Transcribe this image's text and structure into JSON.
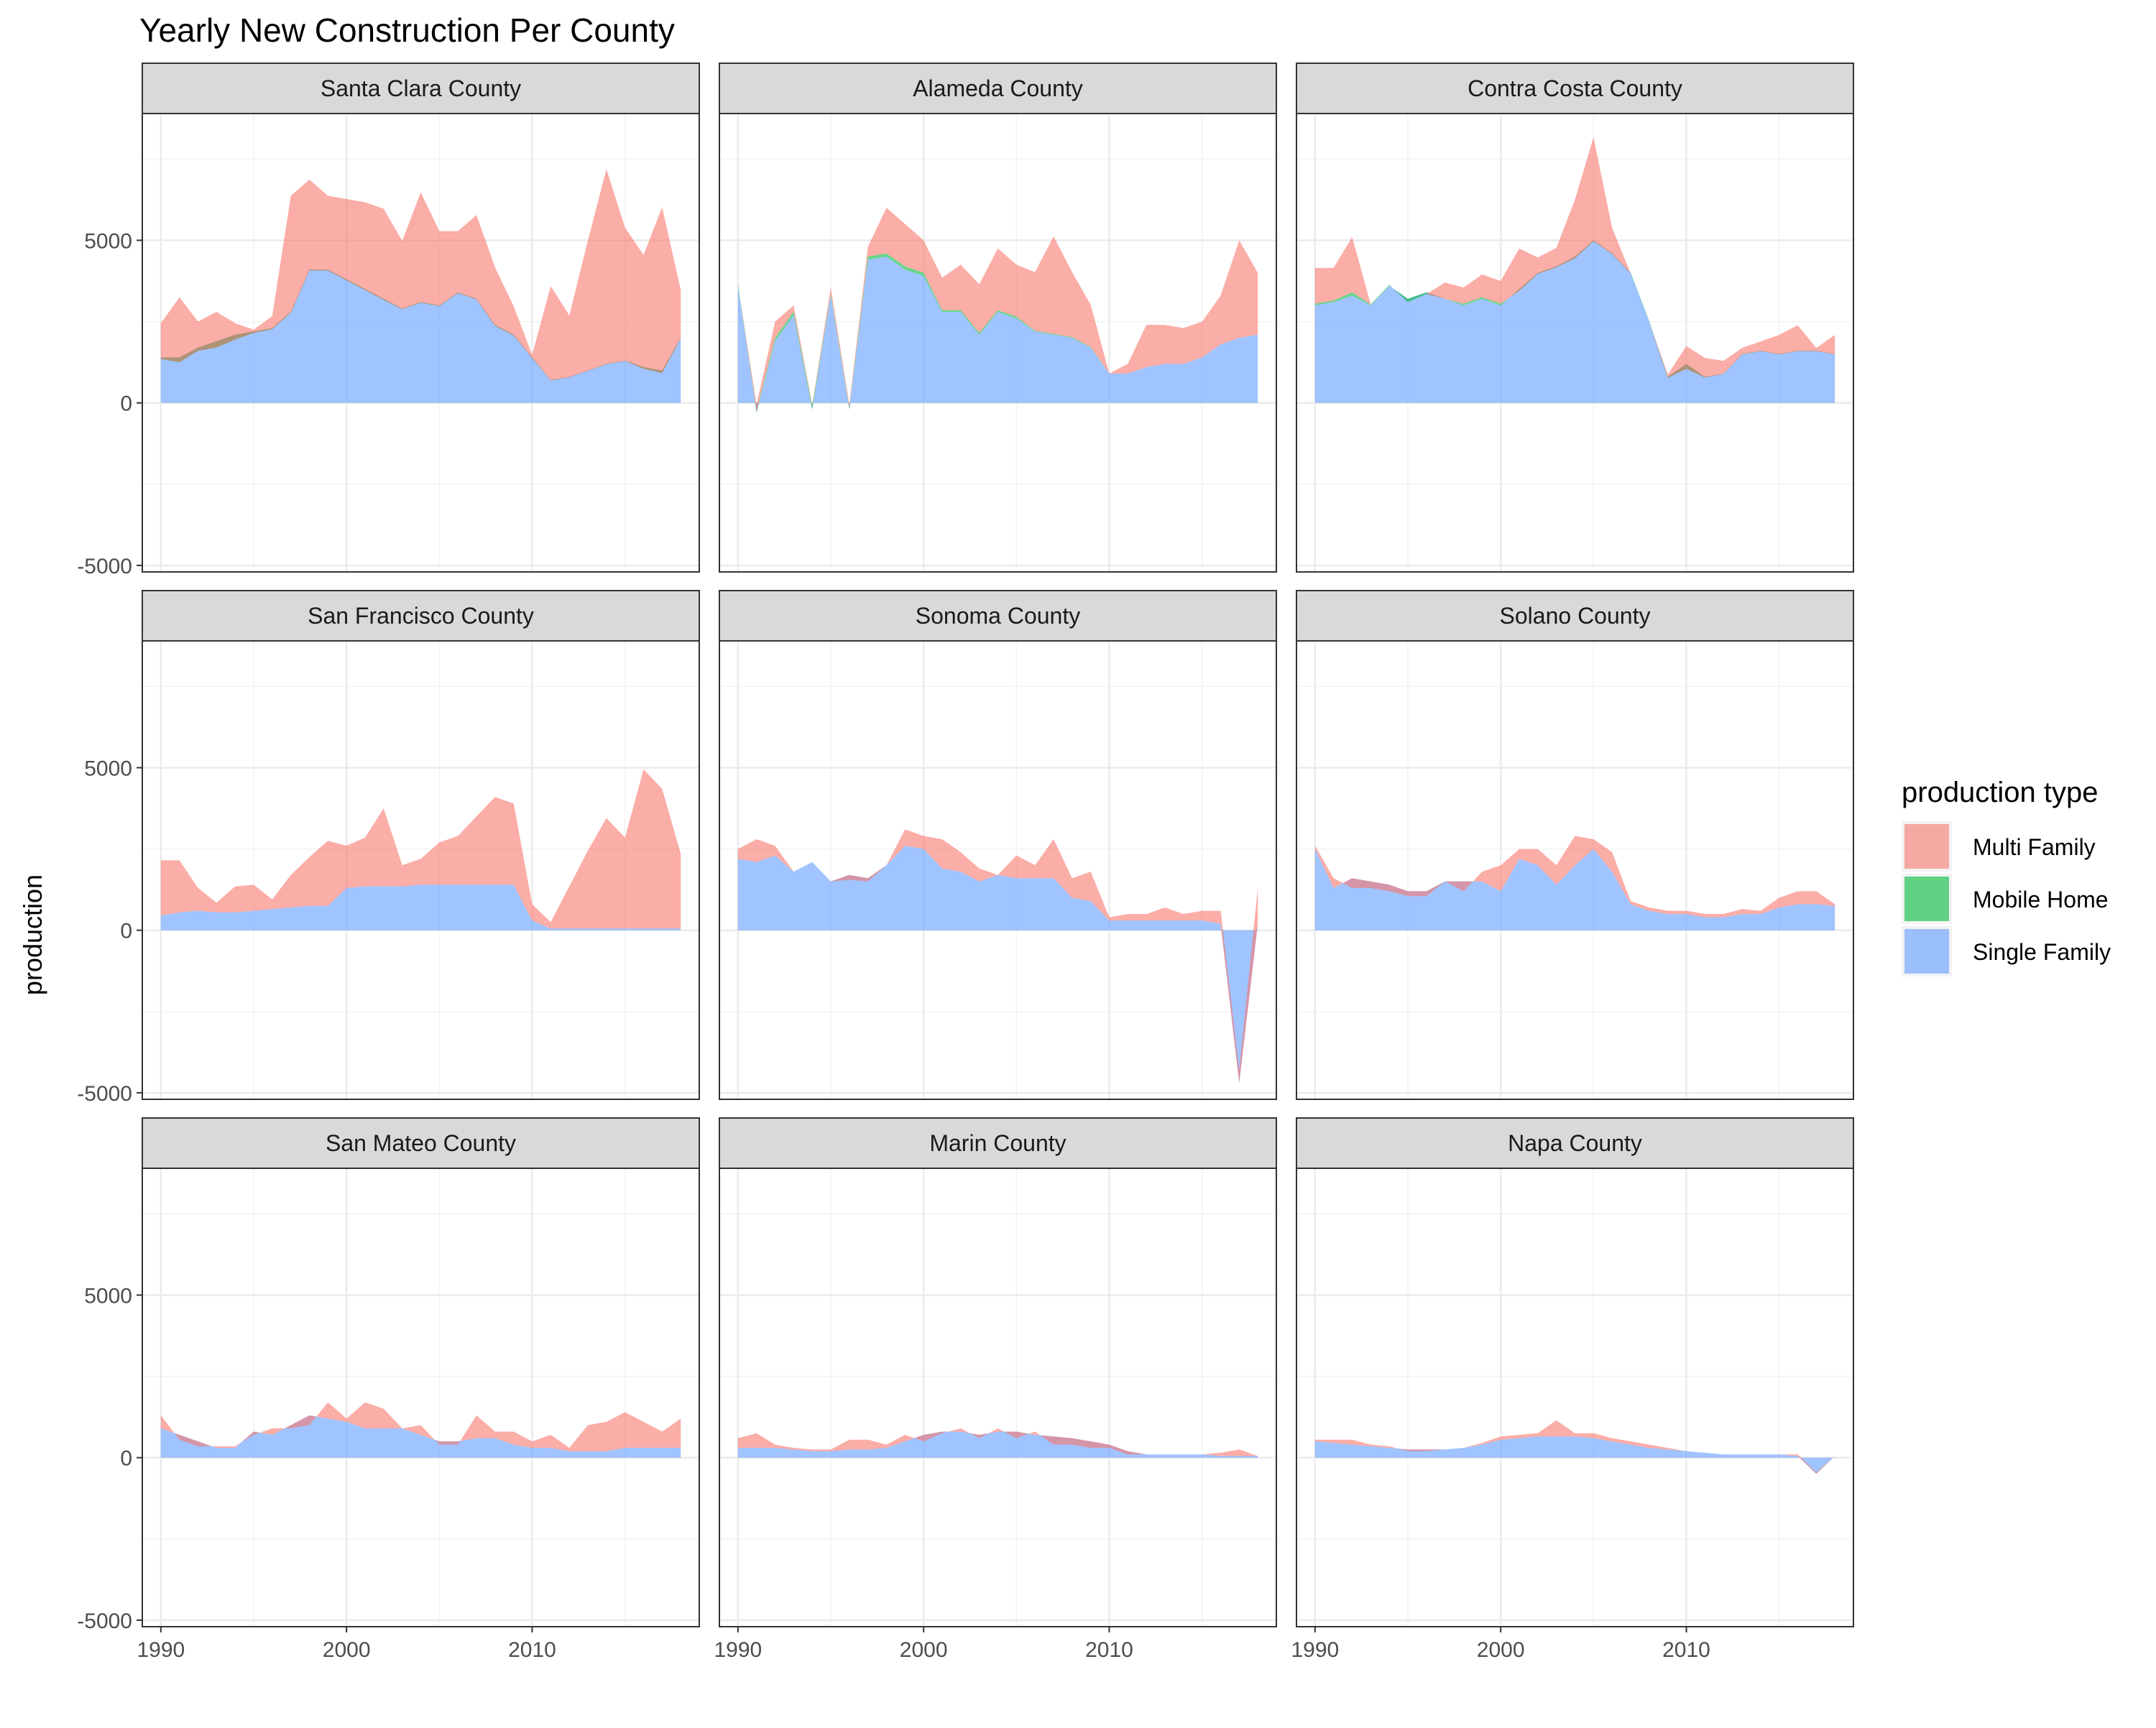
{
  "chart_data": {
    "type": "area",
    "title": "Yearly New Construction Per County",
    "xlabel": "",
    "ylabel": "production",
    "xlim": [
      1989,
      2019
    ],
    "ylim": [
      -5200,
      8900
    ],
    "x_ticks": [
      1990,
      2000,
      2010
    ],
    "y_ticks": [
      5000,
      0,
      -5000
    ],
    "grid": true,
    "stacked": true,
    "legend": {
      "title": "production type",
      "position": "right",
      "entries": [
        {
          "name": "Multi Family",
          "color": "#F8766D"
        },
        {
          "name": "Mobile Home",
          "color": "#00BA38"
        },
        {
          "name": "Single Family",
          "color": "#619CFF"
        }
      ]
    },
    "x": [
      1990,
      1991,
      1992,
      1993,
      1994,
      1995,
      1996,
      1997,
      1998,
      1999,
      2000,
      2001,
      2002,
      2003,
      2004,
      2005,
      2006,
      2007,
      2008,
      2009,
      2010,
      2011,
      2012,
      2013,
      2014,
      2015,
      2016,
      2017,
      2018
    ],
    "panels": [
      {
        "name": "Santa Clara County",
        "series": [
          {
            "name": "Single Family",
            "values": [
              1400,
              1400,
              1700,
              1900,
              2100,
              2200,
              2300,
              2800,
              4100,
              4100,
              3800,
              3500,
              3200,
              2900,
              3100,
              3000,
              3400,
              3200,
              2400,
              2100,
              1400,
              700,
              800,
              1000,
              1200,
              1300,
              1100,
              1000,
              2000
            ]
          },
          {
            "name": "Mobile Home",
            "values": [
              -50,
              -150,
              -100,
              -200,
              -150,
              -50,
              -30,
              -30,
              -30,
              -30,
              -30,
              -30,
              -30,
              -20,
              -20,
              -20,
              -20,
              -20,
              -30,
              -30,
              -20,
              -10,
              -10,
              -10,
              -10,
              -10,
              -50,
              -80,
              -20
            ]
          },
          {
            "name": "Multi Family",
            "values": [
              1100,
              2000,
              900,
              1100,
              500,
              100,
              400,
              3600,
              2800,
              2300,
              2500,
              2700,
              2800,
              2100,
              3400,
              2300,
              1900,
              2600,
              1800,
              900,
              100,
              2900,
              1900,
              4000,
              6000,
              4100,
              3500,
              5100,
              1500
            ]
          }
        ]
      },
      {
        "name": "Alameda County",
        "series": [
          {
            "name": "Single Family",
            "values": [
              3600,
              -300,
              1900,
              2700,
              -200,
              3300,
              -200,
              4400,
              4500,
              4100,
              3900,
              2800,
              2800,
              2100,
              2800,
              2600,
              2200,
              2100,
              2000,
              1700,
              900,
              900,
              1100,
              1200,
              1200,
              1400,
              1800,
              2000,
              2100
            ]
          },
          {
            "name": "Mobile Home",
            "values": [
              50,
              50,
              100,
              100,
              100,
              50,
              50,
              100,
              100,
              100,
              100,
              50,
              50,
              50,
              50,
              50,
              20,
              20,
              20,
              20,
              0,
              0,
              0,
              0,
              0,
              0,
              0,
              0,
              0
            ]
          },
          {
            "name": "Multi Family",
            "values": [
              0,
              200,
              500,
              200,
              50,
              200,
              100,
              300,
              1400,
              1300,
              1000,
              1000,
              1400,
              1500,
              1900,
              1600,
              1800,
              3000,
              2000,
              1300,
              0,
              300,
              1300,
              1200,
              1100,
              1100,
              1500,
              3000,
              1900
            ]
          }
        ]
      },
      {
        "name": "Contra Costa County",
        "series": [
          {
            "name": "Single Family",
            "values": [
              3000,
              3100,
              3300,
              3000,
              3600,
              3200,
              3400,
              3200,
              3000,
              3200,
              3000,
              3500,
              4000,
              4200,
              4500,
              5000,
              4600,
              4000,
              2500,
              800,
              1200,
              800,
              900,
              1500,
              1600,
              1500,
              1600,
              1600,
              1500
            ]
          },
          {
            "name": "Mobile Home",
            "values": [
              50,
              50,
              100,
              30,
              30,
              -100,
              -50,
              0,
              50,
              50,
              50,
              -50,
              -30,
              -30,
              -50,
              -30,
              -20,
              -20,
              -30,
              -30,
              -150,
              -20,
              -10,
              -10,
              -10,
              -10,
              -10,
              -10,
              -10
            ]
          },
          {
            "name": "Multi Family",
            "values": [
              1100,
              1000,
              1700,
              0,
              0,
              0,
              0,
              500,
              500,
              700,
              700,
              1300,
              500,
              600,
              1800,
              3200,
              800,
              0,
              0,
              100,
              700,
              600,
              400,
              200,
              300,
              600,
              800,
              100,
              600
            ]
          }
        ]
      },
      {
        "name": "San Francisco County",
        "series": [
          {
            "name": "Single Family",
            "values": [
              450,
              550,
              600,
              550,
              550,
              600,
              650,
              700,
              750,
              750,
              1300,
              1350,
              1350,
              1350,
              1400,
              1400,
              1400,
              1400,
              1400,
              1400,
              300,
              50,
              50,
              50,
              50,
              50,
              50,
              50,
              50
            ]
          },
          {
            "name": "Mobile Home",
            "values": [
              0,
              0,
              0,
              0,
              0,
              0,
              0,
              0,
              0,
              0,
              0,
              0,
              0,
              0,
              0,
              0,
              0,
              0,
              0,
              0,
              0,
              0,
              0,
              0,
              0,
              0,
              0,
              0,
              0
            ]
          },
          {
            "name": "Multi Family",
            "values": [
              1700,
              1600,
              700,
              300,
              800,
              800,
              300,
              1000,
              1500,
              2000,
              1300,
              1500,
              2400,
              650,
              800,
              1300,
              1500,
              2100,
              2700,
              2500,
              500,
              200,
              1300,
              2400,
              3400,
              2800,
              4900,
              4300,
              2300
            ]
          }
        ]
      },
      {
        "name": "Sonoma County",
        "series": [
          {
            "name": "Single Family",
            "values": [
              2200,
              2100,
              2300,
              1800,
              2100,
              1500,
              1700,
              1600,
              2000,
              2600,
              2500,
              1900,
              1800,
              1500,
              1700,
              1600,
              1600,
              1600,
              1000,
              900,
              300,
              300,
              300,
              300,
              300,
              300,
              200,
              -4700,
              200
            ]
          },
          {
            "name": "Mobile Home",
            "values": [
              0,
              0,
              0,
              0,
              0,
              0,
              0,
              0,
              0,
              0,
              0,
              0,
              0,
              0,
              0,
              0,
              0,
              0,
              0,
              0,
              0,
              0,
              0,
              0,
              0,
              0,
              0,
              0,
              0
            ]
          },
          {
            "name": "Multi Family",
            "values": [
              300,
              700,
              300,
              0,
              0,
              0,
              -150,
              -100,
              0,
              500,
              400,
              900,
              600,
              400,
              0,
              700,
              400,
              1200,
              600,
              900,
              100,
              200,
              200,
              400,
              200,
              300,
              400,
              400,
              1100
            ]
          }
        ]
      },
      {
        "name": "Solano County",
        "series": [
          {
            "name": "Single Family",
            "values": [
              2500,
              1300,
              1600,
              1500,
              1400,
              1200,
              1200,
              1500,
              1500,
              1500,
              1200,
              2200,
              2000,
              1400,
              2000,
              2500,
              1800,
              800,
              600,
              500,
              500,
              400,
              400,
              500,
              500,
              700,
              800,
              800,
              750
            ]
          },
          {
            "name": "Mobile Home",
            "values": [
              0,
              0,
              0,
              0,
              0,
              0,
              0,
              0,
              0,
              0,
              0,
              0,
              0,
              0,
              0,
              0,
              0,
              0,
              0,
              0,
              0,
              0,
              0,
              0,
              0,
              0,
              0,
              0,
              0
            ]
          },
          {
            "name": "Multi Family",
            "values": [
              100,
              300,
              -300,
              -200,
              -200,
              -150,
              -150,
              0,
              -300,
              300,
              800,
              300,
              500,
              600,
              900,
              300,
              600,
              100,
              100,
              100,
              100,
              100,
              100,
              150,
              100,
              300,
              400,
              400,
              50
            ]
          }
        ]
      },
      {
        "name": "San Mateo County",
        "series": [
          {
            "name": "Single Family",
            "values": [
              900,
              700,
              500,
              300,
              300,
              800,
              700,
              1000,
              1300,
              1200,
              1100,
              900,
              900,
              900,
              700,
              500,
              500,
              600,
              600,
              400,
              300,
              300,
              200,
              200,
              200,
              300,
              300,
              300,
              300
            ]
          },
          {
            "name": "Mobile Home",
            "values": [
              0,
              0,
              0,
              0,
              0,
              0,
              0,
              0,
              0,
              0,
              0,
              0,
              0,
              0,
              0,
              0,
              0,
              0,
              0,
              0,
              0,
              0,
              0,
              0,
              0,
              0,
              0,
              0,
              0
            ]
          },
          {
            "name": "Multi Family",
            "values": [
              400,
              -150,
              -150,
              50,
              50,
              -100,
              200,
              -100,
              -300,
              500,
              100,
              800,
              600,
              0,
              300,
              -100,
              -100,
              700,
              200,
              400,
              200,
              400,
              100,
              800,
              900,
              1100,
              800,
              500,
              900
            ]
          }
        ]
      },
      {
        "name": "Marin County",
        "series": [
          {
            "name": "Single Family",
            "values": [
              300,
              300,
              300,
              250,
              200,
              200,
              250,
              250,
              300,
              500,
              700,
              800,
              800,
              700,
              800,
              800,
              700,
              650,
              600,
              500,
              400,
              200,
              100,
              100,
              100,
              100,
              50,
              50,
              50
            ]
          },
          {
            "name": "Mobile Home",
            "values": [
              0,
              0,
              0,
              0,
              0,
              0,
              0,
              0,
              0,
              0,
              0,
              0,
              0,
              0,
              0,
              0,
              0,
              0,
              0,
              0,
              0,
              0,
              0,
              0,
              0,
              0,
              0,
              0,
              0
            ]
          },
          {
            "name": "Multi Family",
            "values": [
              300,
              450,
              100,
              50,
              50,
              50,
              300,
              300,
              100,
              200,
              -200,
              -50,
              100,
              -100,
              100,
              -200,
              100,
              -250,
              -200,
              -200,
              -100,
              -100,
              0,
              0,
              0,
              0,
              100,
              200,
              0
            ]
          }
        ]
      },
      {
        "name": "Napa County",
        "series": [
          {
            "name": "Single Family",
            "values": [
              500,
              450,
              400,
              350,
              300,
              250,
              250,
              250,
              300,
              400,
              550,
              600,
              650,
              650,
              650,
              600,
              500,
              400,
              300,
              250,
              200,
              150,
              100,
              100,
              100,
              100,
              50,
              -500,
              50
            ]
          },
          {
            "name": "Mobile Home",
            "values": [
              0,
              0,
              0,
              0,
              0,
              0,
              0,
              0,
              0,
              0,
              0,
              0,
              0,
              0,
              0,
              0,
              0,
              0,
              0,
              0,
              0,
              0,
              0,
              0,
              0,
              0,
              0,
              0,
              0
            ]
          },
          {
            "name": "Multi Family",
            "values": [
              50,
              100,
              150,
              50,
              50,
              -50,
              -50,
              0,
              0,
              50,
              100,
              100,
              100,
              500,
              100,
              150,
              100,
              100,
              100,
              50,
              0,
              0,
              0,
              0,
              0,
              0,
              50,
              50,
              0
            ]
          }
        ]
      }
    ]
  }
}
